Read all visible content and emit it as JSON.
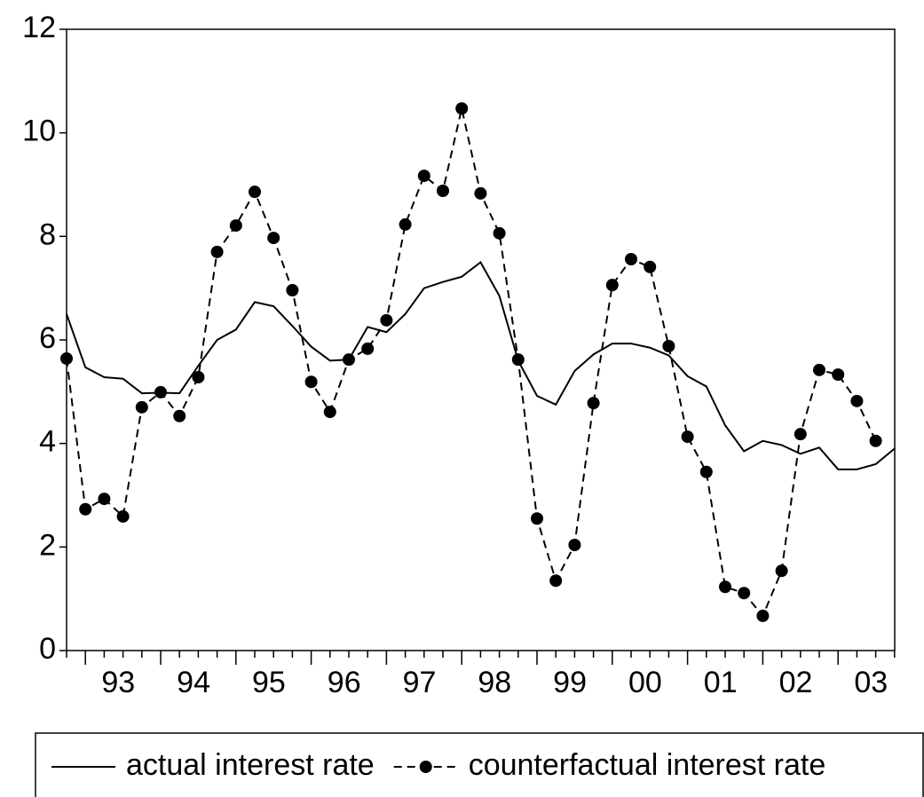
{
  "chart_data": {
    "type": "line",
    "categories": [
      null,
      "93",
      null,
      null,
      null,
      "94",
      null,
      null,
      null,
      "95",
      null,
      null,
      null,
      "96",
      null,
      null,
      null,
      "97",
      null,
      null,
      null,
      "98",
      null,
      null,
      null,
      "99",
      null,
      null,
      null,
      "00",
      null,
      null,
      null,
      "01",
      null,
      null,
      null,
      "02",
      null,
      null,
      null,
      "03",
      null,
      null,
      null
    ],
    "series": [
      {
        "name": "actual interest rate",
        "color": "#000000",
        "style": "solid",
        "marker": "none",
        "values": [
          6.5,
          5.47,
          5.28,
          5.25,
          4.97,
          4.98,
          4.97,
          5.5,
          6.0,
          6.2,
          6.73,
          6.65,
          6.27,
          5.87,
          5.6,
          5.62,
          6.25,
          6.15,
          6.5,
          7.0,
          7.12,
          7.22,
          7.5,
          6.85,
          5.6,
          4.92,
          4.75,
          5.4,
          5.72,
          5.93,
          5.93,
          5.85,
          5.7,
          5.3,
          5.1,
          4.35,
          3.85,
          4.05,
          3.97,
          3.8,
          3.92,
          3.5,
          3.5,
          3.6,
          3.9
        ]
      },
      {
        "name": "counterfactual interest rate",
        "color": "#000000",
        "style": "dashed",
        "marker": "circle",
        "values": [
          5.64,
          2.73,
          2.93,
          2.59,
          4.7,
          4.99,
          4.53,
          5.28,
          7.7,
          8.21,
          8.86,
          7.97,
          6.96,
          5.19,
          4.61,
          5.62,
          5.83,
          6.38,
          8.23,
          9.17,
          8.88,
          10.47,
          8.83,
          8.06,
          5.62,
          2.55,
          1.35,
          2.04,
          4.78,
          7.06,
          7.56,
          7.41,
          5.88,
          4.13,
          3.45,
          1.23,
          1.11,
          0.67,
          1.54,
          4.18,
          5.42,
          5.33,
          4.82,
          4.05,
          null
        ]
      }
    ],
    "ylim": [
      0,
      12
    ],
    "yticks": [
      0,
      2,
      4,
      6,
      8,
      10,
      12
    ],
    "grid": false,
    "legend": "bottom"
  }
}
